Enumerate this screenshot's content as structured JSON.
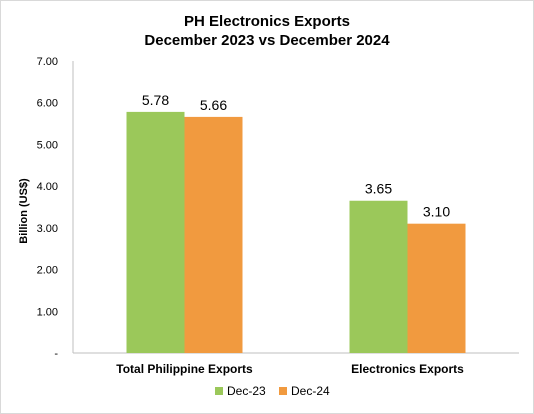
{
  "chart_data": {
    "type": "bar",
    "title": [
      "PH Electronics Exports",
      "December 2023 vs December 2024"
    ],
    "ylabel": "Billion (US$)",
    "xlabel": "",
    "categories": [
      "Total Philippine Exports",
      "Electronics Exports"
    ],
    "series": [
      {
        "name": "Dec-23",
        "values": [
          5.78,
          3.65
        ],
        "labels": [
          "5.78",
          "3.65"
        ],
        "color": "#9bc85a"
      },
      {
        "name": "Dec-24",
        "values": [
          5.66,
          3.1
        ],
        "labels": [
          "5.66",
          "3.10"
        ],
        "color": "#f19a3f"
      }
    ],
    "ylim": [
      0,
      7
    ],
    "yticks": [
      {
        "value": 0,
        "label": "-"
      },
      {
        "value": 1,
        "label": "1.00"
      },
      {
        "value": 2,
        "label": "2.00"
      },
      {
        "value": 3,
        "label": "3.00"
      },
      {
        "value": 4,
        "label": "4.00"
      },
      {
        "value": 5,
        "label": "5.00"
      },
      {
        "value": 6,
        "label": "6.00"
      },
      {
        "value": 7,
        "label": "7.00"
      }
    ],
    "grid": false,
    "legend": "bottom",
    "axis_color": "#bfbfbf"
  }
}
